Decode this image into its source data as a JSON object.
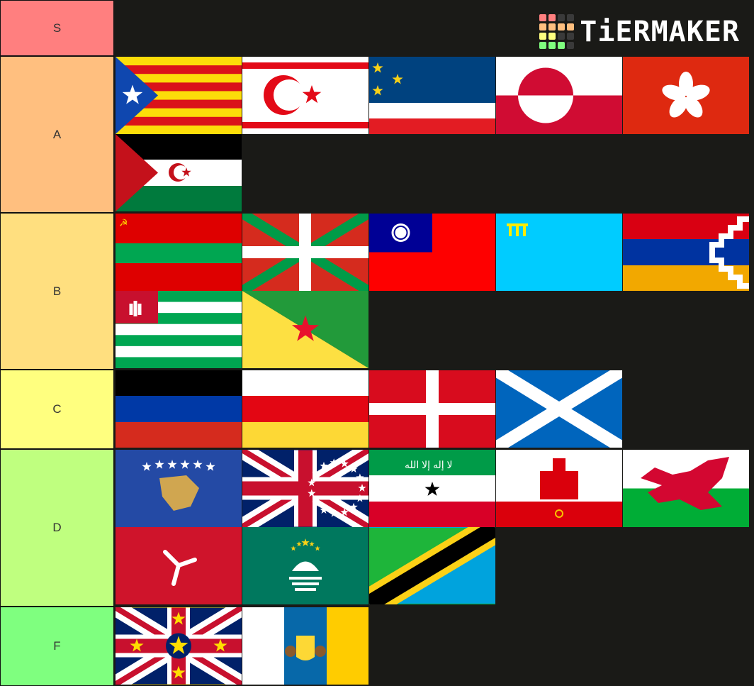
{
  "logo": {
    "text": "TiERMAKER",
    "cells": [
      "#ff7f7f",
      "#ff7f7f",
      "#3a3a3a",
      "#3a3a3a",
      "#ffbf7f",
      "#ffbf7f",
      "#ffbf7f",
      "#ffbf7f",
      "#ffff7f",
      "#ffff7f",
      "#3a3a3a",
      "#3a3a3a",
      "#7fff7f",
      "#7fff7f",
      "#7fff7f",
      "#3a3a3a"
    ]
  },
  "tiers": [
    {
      "label": "S",
      "color": "#ff7f7f",
      "items": []
    },
    {
      "label": "A",
      "color": "#ffbf7f",
      "items": [
        "flag-estelada",
        "flag-northern-cyprus",
        "flag-blue-white-red-stars",
        "flag-greenland",
        "flag-hong-kong",
        "flag-western-sahara"
      ]
    },
    {
      "label": "B",
      "color": "#ffdf7f",
      "items": [
        "flag-transnistria",
        "flag-basque",
        "flag-taiwan",
        "flag-crimean-tatar",
        "flag-artsakh",
        "flag-abkhazia",
        "flag-french-guiana"
      ]
    },
    {
      "label": "C",
      "color": "#ffff7f",
      "items": [
        "flag-donetsk",
        "flag-south-ossetia",
        "flag-red-white-cross",
        "flag-scotland"
      ]
    },
    {
      "label": "D",
      "color": "#bfff7f",
      "items": [
        "flag-kosovo",
        "flag-cook-islands",
        "flag-somaliland",
        "flag-gibraltar",
        "flag-wales",
        "flag-isle-of-man",
        "flag-macau",
        "flag-zanzibar"
      ]
    },
    {
      "label": "F",
      "color": "#7fff7f",
      "items": [
        "flag-niue",
        "flag-canary-islands"
      ]
    }
  ]
}
